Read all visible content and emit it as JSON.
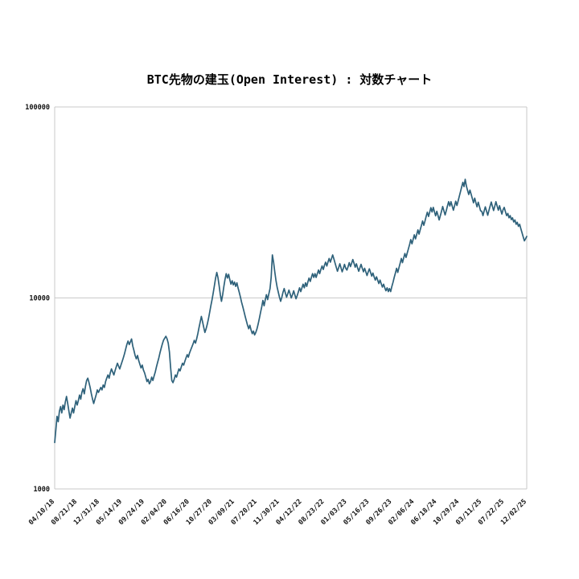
{
  "page": {
    "background": "#ffffff"
  },
  "chart_data": {
    "type": "line",
    "title": "BTC先物の建玉(Open Interest) : 対数チャート",
    "xlabel": "",
    "ylabel": "",
    "y_scale": "log",
    "y_range": [
      1000,
      100000
    ],
    "y_ticks": [
      1000,
      10000,
      100000
    ],
    "grid": "horizontal-major-only",
    "legend": "none",
    "line_color": "#2e617a",
    "grid_color": "#c9c9c9",
    "x_tick_every": 19,
    "x_tick_labels": [
      "04/10/18",
      "08/21/18",
      "12/31/18",
      "05/14/19",
      "09/24/19",
      "02/04/20",
      "06/16/20",
      "10/27/20",
      "03/09/21",
      "07/20/21",
      "11/30/21",
      "04/12/22",
      "08/23/22",
      "01/03/23",
      "05/16/23",
      "09/26/23",
      "02/06/24",
      "06/18/24",
      "10/29/24",
      "03/11/25",
      "07/22/25",
      "12/02/25"
    ],
    "values": [
      1750,
      2050,
      2400,
      2250,
      2550,
      2700,
      2500,
      2750,
      2600,
      2850,
      3050,
      2800,
      2550,
      2350,
      2500,
      2650,
      2500,
      2700,
      2900,
      2750,
      2900,
      3100,
      2950,
      3200,
      3350,
      3150,
      3450,
      3700,
      3800,
      3600,
      3400,
      3150,
      2950,
      2800,
      2950,
      3100,
      3300,
      3200,
      3300,
      3400,
      3300,
      3500,
      3400,
      3650,
      3800,
      3950,
      3800,
      4050,
      4250,
      4100,
      3950,
      4150,
      4350,
      4550,
      4400,
      4250,
      4450,
      4650,
      4850,
      5100,
      5400,
      5700,
      5950,
      5700,
      5900,
      6100,
      5600,
      5300,
      5000,
      4800,
      5000,
      4700,
      4500,
      4300,
      4450,
      4200,
      4050,
      3850,
      3650,
      3750,
      3550,
      3650,
      3850,
      3700,
      3900,
      4100,
      4350,
      4600,
      4850,
      5150,
      5450,
      5750,
      6000,
      6150,
      6300,
      6100,
      5800,
      5200,
      4300,
      3700,
      3600,
      3750,
      3950,
      3850,
      4050,
      4250,
      4150,
      4350,
      4550,
      4450,
      4650,
      4850,
      5050,
      4900,
      5150,
      5350,
      5550,
      5750,
      6000,
      5800,
      6100,
      6500,
      7000,
      7500,
      8000,
      7500,
      7000,
      6600,
      6900,
      7300,
      7800,
      8400,
      9100,
      9800,
      10600,
      11600,
      12700,
      13600,
      12800,
      11600,
      10400,
      9600,
      10400,
      11500,
      12500,
      13400,
      12700,
      13300,
      12500,
      11800,
      12300,
      11700,
      12100,
      11500,
      12000,
      11300,
      10700,
      10100,
      9500,
      9000,
      8500,
      8000,
      7600,
      7200,
      6900,
      7200,
      6800,
      6500,
      6700,
      6400,
      6600,
      6900,
      7300,
      7800,
      8400,
      9000,
      9700,
      9100,
      9800,
      10400,
      9800,
      10500,
      11200,
      12800,
      16800,
      15400,
      13800,
      12400,
      11400,
      10700,
      10100,
      9600,
      10100,
      10700,
      11200,
      10600,
      10100,
      10500,
      11000,
      10500,
      10000,
      10400,
      10900,
      10400,
      9900,
      10300,
      10800,
      11300,
      10800,
      11300,
      11800,
      11300,
      12000,
      11500,
      12100,
      12700,
      12200,
      12800,
      13400,
      12800,
      13400,
      12800,
      13400,
      14000,
      13400,
      14100,
      14700,
      14100,
      14800,
      15400,
      14700,
      15400,
      16100,
      15400,
      16100,
      16800,
      16000,
      15200,
      14500,
      13800,
      14400,
      15100,
      14400,
      13700,
      14300,
      15000,
      14300,
      14000,
      14600,
      15300,
      14600,
      15200,
      15900,
      15200,
      14500,
      15100,
      14400,
      13800,
      14400,
      15000,
      14300,
      13700,
      14300,
      13700,
      13100,
      13700,
      14200,
      13600,
      13000,
      13500,
      12900,
      12400,
      12900,
      12400,
      11900,
      12400,
      11900,
      11400,
      11800,
      11300,
      10900,
      11300,
      10800,
      11200,
      10800,
      11500,
      12100,
      12800,
      13500,
      14300,
      13600,
      14400,
      15200,
      16100,
      15300,
      16200,
      17100,
      16300,
      17200,
      18100,
      19100,
      20200,
      19200,
      20300,
      21400,
      20400,
      21500,
      22700,
      21600,
      22800,
      24000,
      25300,
      24000,
      25300,
      26700,
      28100,
      26700,
      28200,
      29700,
      28200,
      29800,
      28300,
      26900,
      28400,
      27000,
      25600,
      27000,
      28500,
      30100,
      28600,
      27200,
      28700,
      30300,
      31900,
      30300,
      31900,
      30300,
      28800,
      30400,
      32100,
      30500,
      32200,
      34000,
      36000,
      38100,
      40300,
      38300,
      41800,
      38500,
      36600,
      34800,
      36700,
      34900,
      33200,
      31500,
      33300,
      31600,
      30000,
      31700,
      30100,
      28600,
      28400,
      27000,
      28500,
      30000,
      28500,
      27100,
      28600,
      30200,
      31800,
      30200,
      28700,
      30300,
      31900,
      30300,
      28800,
      30400,
      28900,
      27500,
      29000,
      29800,
      28300,
      27000,
      27700,
      26300,
      27000,
      25700,
      26300,
      25000,
      25600,
      24300,
      24900,
      23700,
      24300,
      23100,
      22000,
      20900,
      19900,
      20400,
      21000
    ]
  }
}
